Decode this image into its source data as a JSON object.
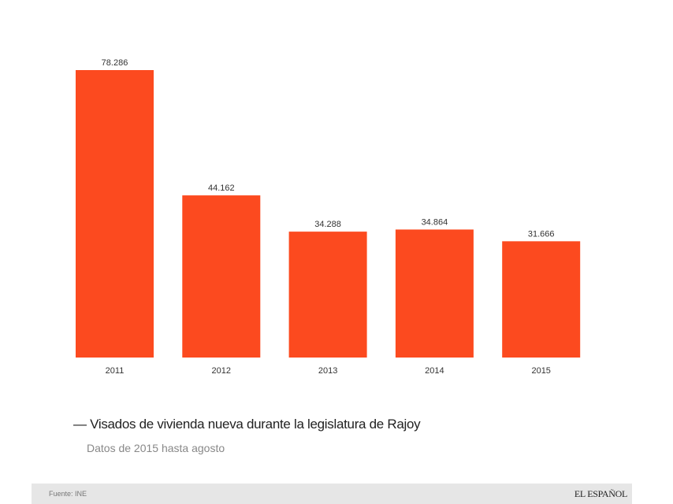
{
  "chart_data": {
    "type": "bar",
    "title": "— Visados de vivienda nueva durante la legislatura de Rajoy",
    "subtitle": "Datos de 2015 hasta agosto",
    "categories": [
      "2011",
      "2012",
      "2013",
      "2014",
      "2015"
    ],
    "values": [
      78286,
      44162,
      34288,
      34864,
      31666
    ],
    "value_labels": [
      "78.286",
      "44.162",
      "34.288",
      "34.864",
      "31.666"
    ],
    "xlabel": "",
    "ylabel": "",
    "ylim": [
      0,
      78286
    ],
    "grid": false,
    "bar_color": "#fc4a1f"
  },
  "footer": {
    "source": "Fuente: INE",
    "logo": "EL ESPAÑOL"
  }
}
